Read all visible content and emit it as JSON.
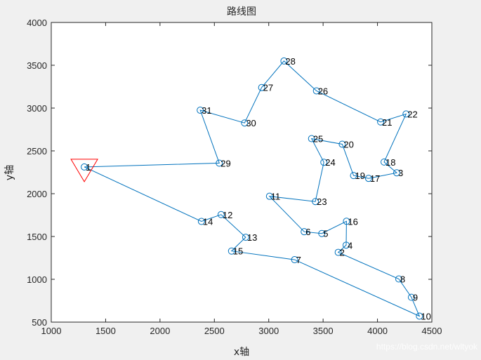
{
  "chart_data": {
    "type": "scatter",
    "title": "路线图",
    "xlabel": "x轴",
    "ylabel": "y轴",
    "xlim": [
      1000,
      4500
    ],
    "ylim": [
      500,
      4000
    ],
    "xticks": [
      1000,
      1500,
      2000,
      2500,
      3000,
      3500,
      4000,
      4500
    ],
    "yticks": [
      500,
      1000,
      1500,
      2000,
      2500,
      3000,
      3500,
      4000
    ],
    "grid": false,
    "line_color": "#0072BD",
    "start_marker_color": "#FF0000",
    "start_marker_shape": "triangle-down",
    "start_marker": {
      "x": 1304,
      "y": 2312
    },
    "points": [
      {
        "id": "1",
        "x": 1304,
        "y": 2312
      },
      {
        "id": "2",
        "x": 3639,
        "y": 1315
      },
      {
        "id": "3",
        "x": 4177,
        "y": 2244
      },
      {
        "id": "4",
        "x": 3712,
        "y": 1399
      },
      {
        "id": "5",
        "x": 3488,
        "y": 1535
      },
      {
        "id": "6",
        "x": 3326,
        "y": 1556
      },
      {
        "id": "7",
        "x": 3238,
        "y": 1229
      },
      {
        "id": "8",
        "x": 4196,
        "y": 1004
      },
      {
        "id": "9",
        "x": 4312,
        "y": 790
      },
      {
        "id": "10",
        "x": 4386,
        "y": 570
      },
      {
        "id": "11",
        "x": 3007,
        "y": 1970
      },
      {
        "id": "12",
        "x": 2562,
        "y": 1756
      },
      {
        "id": "13",
        "x": 2788,
        "y": 1491
      },
      {
        "id": "14",
        "x": 2381,
        "y": 1676
      },
      {
        "id": "15",
        "x": 2658,
        "y": 1330
      },
      {
        "id": "16",
        "x": 3715,
        "y": 1678
      },
      {
        "id": "17",
        "x": 3918,
        "y": 2179
      },
      {
        "id": "18",
        "x": 4061,
        "y": 2370
      },
      {
        "id": "19",
        "x": 3780,
        "y": 2212
      },
      {
        "id": "20",
        "x": 3676,
        "y": 2578
      },
      {
        "id": "21",
        "x": 4029,
        "y": 2838
      },
      {
        "id": "22",
        "x": 4263,
        "y": 2931
      },
      {
        "id": "23",
        "x": 3429,
        "y": 1908
      },
      {
        "id": "24",
        "x": 3507,
        "y": 2367
      },
      {
        "id": "25",
        "x": 3394,
        "y": 2643
      },
      {
        "id": "26",
        "x": 3439,
        "y": 3201
      },
      {
        "id": "27",
        "x": 2935,
        "y": 3240
      },
      {
        "id": "28",
        "x": 3140,
        "y": 3550
      },
      {
        "id": "29",
        "x": 2545,
        "y": 2357
      },
      {
        "id": "30",
        "x": 2778,
        "y": 2826
      },
      {
        "id": "31",
        "x": 2370,
        "y": 2975
      }
    ],
    "route": [
      "1",
      "14",
      "12",
      "13",
      "15",
      "7",
      "10",
      "9",
      "8",
      "2",
      "4",
      "16",
      "5",
      "6",
      "11",
      "23",
      "24",
      "25",
      "20",
      "19",
      "17",
      "3",
      "18",
      "22",
      "21",
      "26",
      "28",
      "27",
      "30",
      "31",
      "29",
      "1"
    ]
  },
  "watermark": "https://blog.csdn.net/wltyok"
}
